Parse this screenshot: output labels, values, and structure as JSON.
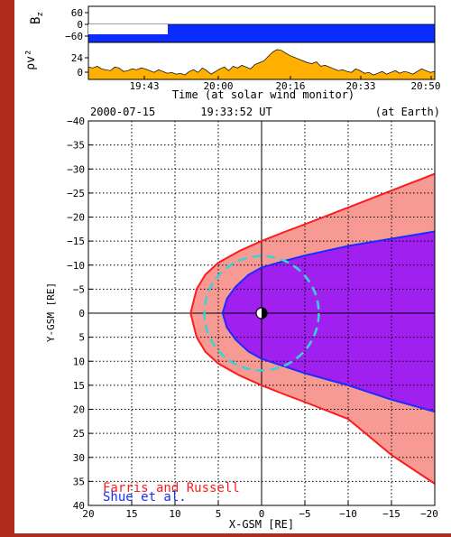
{
  "colors": {
    "background_red": "#b02a1e",
    "panel": "#ffffff",
    "bz_fill": "#0a2cff",
    "pressure_fill": "#ffb000",
    "farris_fill": "#f79a94",
    "farris_line": "#ff1a1a",
    "shue_fill": "#a020f0",
    "shue_line": "#1a2cff",
    "circle": "#33d6d6",
    "earth": "#000000"
  },
  "top_panel": {
    "yaxis_labels": {
      "bz": "B",
      "bz_sub": "z",
      "pressure": "ρv²"
    },
    "bz_ticks": [
      "60",
      "0",
      "−60"
    ],
    "pressure_ticks": [
      "24",
      "0"
    ],
    "time_ticks": [
      "19:43",
      "20:00",
      "20:16",
      "20:33",
      "20:50"
    ],
    "time_label": "Time (at solar wind monitor)",
    "pressure_series": [
      14,
      13,
      15,
      12,
      11,
      10,
      14,
      13,
      9,
      10,
      12,
      11,
      13,
      12,
      10,
      8,
      11,
      9,
      7,
      8,
      6,
      7,
      5,
      9,
      11,
      8,
      13,
      10,
      6,
      9,
      12,
      14,
      10,
      15,
      13,
      16,
      14,
      12,
      17,
      19,
      21,
      26,
      31,
      34,
      33,
      30,
      27,
      25,
      23,
      21,
      19,
      18,
      20,
      15,
      16,
      14,
      12,
      10,
      11,
      9,
      8,
      12,
      10,
      7,
      8,
      5,
      7,
      9,
      6,
      8,
      10,
      7,
      9,
      8,
      6,
      9,
      12,
      10,
      8,
      9
    ]
  },
  "chart_data": {
    "type": "area",
    "title": {
      "date": "2000-07-15",
      "time": "19:33:52 UT",
      "location": "(at Earth)"
    },
    "xlabel": "X-GSM [RE]",
    "ylabel": "Y-GSM [RE]",
    "xlim": [
      20,
      -20
    ],
    "ylim": [
      -40,
      40
    ],
    "x_ticks": [
      "20",
      "15",
      "10",
      "5",
      "0",
      "−5",
      "−10",
      "−15",
      "−20"
    ],
    "y_ticks": [
      "−40",
      "−35",
      "−30",
      "−25",
      "−20",
      "−15",
      "−10",
      "−5",
      "0",
      "5",
      "10",
      "15",
      "20",
      "25",
      "30",
      "35",
      "40"
    ],
    "grid": "dotted",
    "series": [
      {
        "name": "Farris and Russell",
        "x": [
          -20,
          -15,
          -10,
          -5,
          -2.5,
          0,
          2.5,
          5,
          6.5,
          7.5,
          8.2,
          7.5,
          6.5,
          5,
          2.5,
          0,
          -2.5,
          -5,
          -10,
          -15,
          -20
        ],
        "y": [
          -29,
          -25.5,
          -22,
          -18.5,
          -16.8,
          -15,
          -13,
          -10.5,
          -8,
          -5,
          0,
          5,
          8,
          10.5,
          13,
          15,
          16.8,
          18.5,
          22,
          29.5,
          35.5
        ]
      },
      {
        "name": "Shue et al.",
        "x": [
          -20,
          -15,
          -10,
          -5,
          -2.5,
          0,
          1.5,
          3,
          4,
          4.5,
          4,
          3,
          1.5,
          0,
          -2.5,
          -5,
          -10,
          -15,
          -20
        ],
        "y": [
          -17,
          -15.5,
          -14,
          -12,
          -10.8,
          -9.5,
          -8,
          -5.5,
          -3,
          0,
          3,
          5.5,
          8,
          9.5,
          11,
          12.5,
          15,
          18,
          20.5
        ]
      }
    ],
    "circle": {
      "center": [
        0,
        0
      ],
      "radius": 6.6
    },
    "earth": {
      "center": [
        0,
        0
      ]
    },
    "legend": {
      "placement": "bottom-left",
      "entries": [
        "Farris and Russell",
        "Shue et al."
      ]
    }
  }
}
